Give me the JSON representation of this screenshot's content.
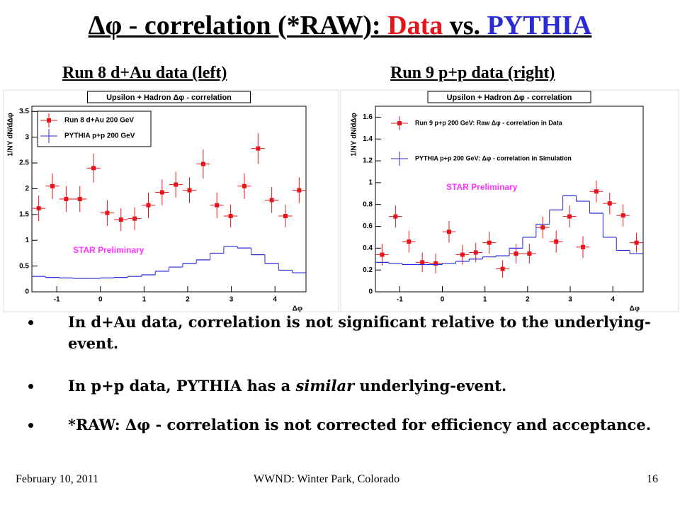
{
  "slide": {
    "title": {
      "prefix": "Δφ - correlation (*RAW): ",
      "data": "Data",
      "middle": " vs. ",
      "pythia": "PYTHIA"
    },
    "subtitles": [
      "Run 8 d+Au data (left)",
      "Run 9 p+p data (right)"
    ],
    "bullets": [
      [
        "In d+Au data, correlation is not significant relative to the underlying-event."
      ],
      [
        "In p+p data, PYTHIA has a ",
        "similar",
        " underlying-event."
      ],
      [
        "*RAW: Δφ - correlation is not corrected for efficiency and acceptance."
      ]
    ],
    "footer": {
      "date": "February 10, 2011",
      "venue": "WWND: Winter Park, Colorado",
      "page": "16"
    }
  },
  "chart_data": [
    {
      "type": "histogram",
      "title": "Upsilon + Hadron Δφ - correlation",
      "x_label": "Δφ",
      "y_label": "1/NΥ dN/dΔφ",
      "annotation": "STAR Preliminary",
      "legend": "upper left",
      "bins": [
        -1.571,
        -1.257,
        -0.942,
        -0.628,
        -0.314,
        0,
        0.314,
        0.628,
        0.942,
        1.257,
        1.571,
        1.885,
        2.199,
        2.513,
        2.827,
        3.142,
        3.456,
        3.77,
        4.084,
        4.398,
        4.712
      ],
      "xlim": [
        -1.571,
        4.712
      ],
      "xticks": [
        -1,
        0,
        1,
        2,
        3,
        4
      ],
      "ylim": [
        0,
        3.6
      ],
      "yticks": [
        0,
        0.5,
        1,
        1.5,
        2,
        2.5,
        3,
        3.5
      ],
      "series": [
        {
          "name": "Run 8 d+Au 200 GeV",
          "color": "#e8141b",
          "style": "points",
          "values": [
            1.62,
            2.05,
            1.8,
            1.8,
            2.4,
            1.53,
            1.4,
            1.42,
            1.68,
            1.93,
            2.08,
            1.97,
            2.48,
            1.68,
            1.47,
            2.05,
            2.78,
            1.78,
            1.47,
            1.97
          ],
          "errors": [
            0.25,
            0.25,
            0.25,
            0.25,
            0.28,
            0.25,
            0.22,
            0.22,
            0.25,
            0.25,
            0.25,
            0.25,
            0.28,
            0.25,
            0.22,
            0.25,
            0.3,
            0.25,
            0.22,
            0.25
          ]
        },
        {
          "name": "PYTHIA p+p 200 GeV",
          "color": "#2b2bd6",
          "style": "step",
          "values": [
            0.3,
            0.28,
            0.27,
            0.26,
            0.26,
            0.27,
            0.28,
            0.3,
            0.33,
            0.4,
            0.48,
            0.55,
            0.62,
            0.75,
            0.88,
            0.85,
            0.72,
            0.55,
            0.42,
            0.37
          ]
        }
      ]
    },
    {
      "type": "histogram",
      "title": "Upsilon + Hadron Δφ - correlation",
      "x_label": "Δφ",
      "y_label": "1/NΥ dN/dΔφ",
      "annotation": "STAR Preliminary",
      "legend": "upper left",
      "bins": [
        -1.571,
        -1.257,
        -0.942,
        -0.628,
        -0.314,
        0,
        0.314,
        0.628,
        0.942,
        1.257,
        1.571,
        1.885,
        2.199,
        2.513,
        2.827,
        3.142,
        3.456,
        3.77,
        4.084,
        4.398,
        4.712
      ],
      "xlim": [
        -1.571,
        4.712
      ],
      "xticks": [
        -1,
        0,
        1,
        2,
        3,
        4
      ],
      "ylim": [
        0,
        1.7
      ],
      "yticks": [
        0,
        0.2,
        0.4,
        0.6,
        0.8,
        1,
        1.2,
        1.4,
        1.6
      ],
      "series": [
        {
          "name": "Run 9 p+p 200 GeV: Raw Δφ - correlation in Data",
          "color": "#e8141b",
          "style": "points",
          "values": [
            0.34,
            0.69,
            0.46,
            0.27,
            0.26,
            0.55,
            0.34,
            0.36,
            0.45,
            0.21,
            0.35,
            0.35,
            0.59,
            0.46,
            0.69,
            0.41,
            0.92,
            0.81,
            0.7,
            0.45
          ],
          "errors": [
            0.1,
            0.1,
            0.1,
            0.09,
            0.09,
            0.1,
            0.09,
            0.09,
            0.1,
            0.08,
            0.09,
            0.09,
            0.1,
            0.1,
            0.1,
            0.1,
            0.1,
            0.1,
            0.1,
            0.09
          ]
        },
        {
          "name": "PYTHIA p+p 200 GeV: Δφ - correlation in Simulation",
          "color": "#2b2bd6",
          "style": "step",
          "values": [
            0.27,
            0.26,
            0.25,
            0.25,
            0.25,
            0.26,
            0.28,
            0.3,
            0.32,
            0.33,
            0.4,
            0.5,
            0.62,
            0.75,
            0.88,
            0.83,
            0.72,
            0.5,
            0.38,
            0.35
          ]
        }
      ]
    }
  ]
}
